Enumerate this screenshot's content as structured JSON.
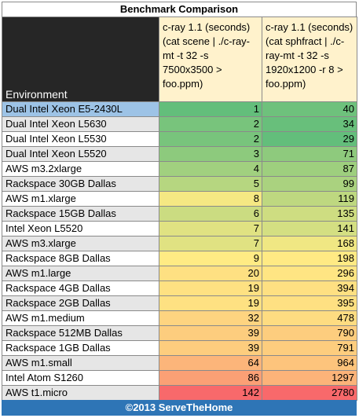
{
  "title": "Benchmark Comparison",
  "footer": "©2013 ServeTheHome",
  "chart_data": {
    "type": "table",
    "title": "Benchmark Comparison",
    "columns": [
      "Environment",
      "c-ray 1.1 (seconds) (cat scene | ./c-ray-mt -t 32 -s 7500x3500 > foo.ppm)",
      "c-ray 1.1 (seconds) (cat sphfract | ./c-ray-mt -t 32 -s 1920x1200 -r 8 > foo.ppm)"
    ],
    "rows": [
      {
        "environment": "Dual Intel Xeon E5-2430L",
        "scene": 1,
        "sphfract": 40
      },
      {
        "environment": "Dual Intel Xeon L5630",
        "scene": 2,
        "sphfract": 34
      },
      {
        "environment": "Dual Intel Xeon L5530",
        "scene": 2,
        "sphfract": 29
      },
      {
        "environment": "Dual Intel Xeon L5520",
        "scene": 3,
        "sphfract": 71
      },
      {
        "environment": "AWS m3.2xlarge",
        "scene": 4,
        "sphfract": 87
      },
      {
        "environment": "Rackspace 30GB Dallas",
        "scene": 5,
        "sphfract": 99
      },
      {
        "environment": "AWS m1.xlarge",
        "scene": 8,
        "sphfract": 119
      },
      {
        "environment": "Rackspace 15GB Dallas",
        "scene": 6,
        "sphfract": 135
      },
      {
        "environment": "Intel Xeon L5520",
        "scene": 7,
        "sphfract": 141
      },
      {
        "environment": "AWS m3.xlarge",
        "scene": 7,
        "sphfract": 168
      },
      {
        "environment": "Rackspace 8GB Dallas",
        "scene": 9,
        "sphfract": 198
      },
      {
        "environment": "AWS m1.large",
        "scene": 20,
        "sphfract": 296
      },
      {
        "environment": "Rackspace 4GB Dallas",
        "scene": 19,
        "sphfract": 394
      },
      {
        "environment": "Rackspace 2GB Dallas",
        "scene": 19,
        "sphfract": 395
      },
      {
        "environment": "AWS m1.medium",
        "scene": 32,
        "sphfract": 478
      },
      {
        "environment": "Rackspace 512MB Dallas",
        "scene": 39,
        "sphfract": 790
      },
      {
        "environment": "Rackspace 1GB Dallas",
        "scene": 39,
        "sphfract": 791
      },
      {
        "environment": "AWS m1.small",
        "scene": 64,
        "sphfract": 964
      },
      {
        "environment": "Intel Atom S1260",
        "scene": 86,
        "sphfract": 1297
      },
      {
        "environment": "AWS t1.micro",
        "scene": 142,
        "sphfract": 2780
      }
    ],
    "highlighted_row": "Dual Intel Xeon E5-2430L",
    "color_scale": {
      "low": "#63be7b",
      "mid": "#ffeb84",
      "high": "#f8696b"
    }
  },
  "colors": {
    "header_dark": "#262626",
    "header_light": "#fff2cc",
    "highlight": "#9dc3e6",
    "footer": "#2e75b6"
  }
}
